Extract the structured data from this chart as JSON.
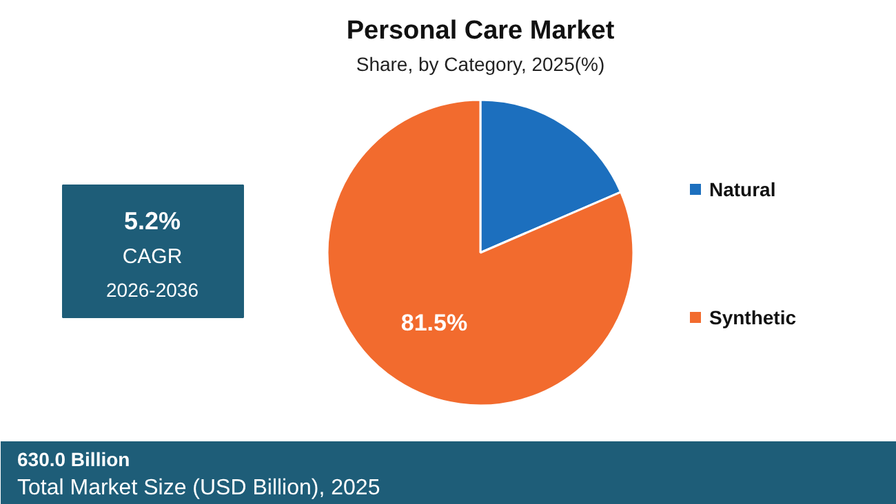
{
  "chart_data": {
    "type": "pie",
    "title": "Personal Care Market",
    "subtitle": "Share, by Category, 2025(%)",
    "categories": [
      "Natural",
      "Synthetic"
    ],
    "values": [
      18.5,
      81.5
    ],
    "colors": [
      "#1c6fbe",
      "#f26b2e"
    ],
    "value_labels": [
      null,
      "81.5%"
    ],
    "legend": "right",
    "annotations": [
      "5.2%",
      "CAGR",
      "2026-2036",
      "630.0 Billion",
      "Total Market Size (USD Billion), 2025"
    ]
  }
}
